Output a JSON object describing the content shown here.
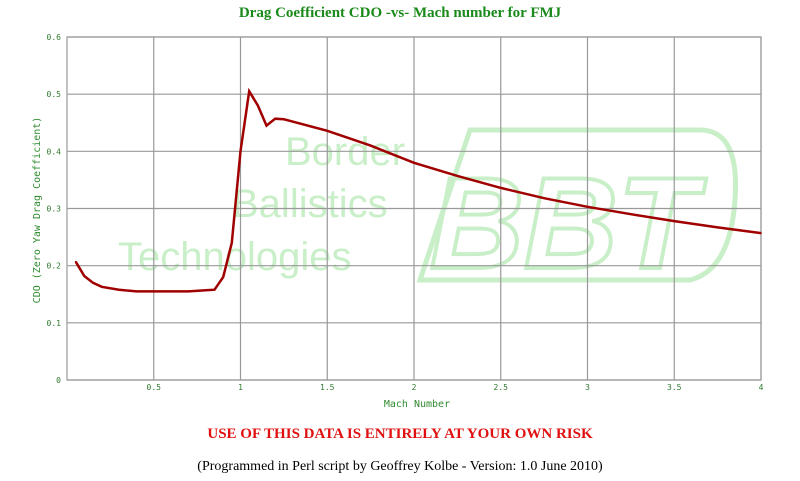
{
  "chart_data": {
    "type": "line",
    "title": "Drag Coefficient CDO -vs- Mach number for FMJ",
    "xlabel": "Mach Number",
    "ylabel": "CDO (Zero Yaw Drag Coefficient)",
    "xlim": [
      0,
      4
    ],
    "ylim": [
      0,
      0.6
    ],
    "xticks": [
      "0.5",
      "1",
      "1.5",
      "2",
      "2.5",
      "3",
      "3.5",
      "4"
    ],
    "yticks": [
      "0",
      "0.1",
      "0.2",
      "0.3",
      "0.4",
      "0.5",
      "0.6"
    ],
    "grid": true,
    "line_color": "#a00000",
    "x": [
      0.05,
      0.1,
      0.15,
      0.2,
      0.3,
      0.4,
      0.5,
      0.6,
      0.7,
      0.8,
      0.85,
      0.9,
      0.95,
      1.0,
      1.05,
      1.1,
      1.15,
      1.2,
      1.25,
      1.3,
      1.5,
      1.75,
      2.0,
      2.25,
      2.5,
      2.75,
      3.0,
      3.25,
      3.5,
      3.75,
      4.0
    ],
    "y": [
      0.207,
      0.182,
      0.17,
      0.163,
      0.158,
      0.155,
      0.155,
      0.155,
      0.155,
      0.157,
      0.158,
      0.18,
      0.24,
      0.4,
      0.505,
      0.48,
      0.445,
      0.457,
      0.456,
      0.452,
      0.436,
      0.41,
      0.38,
      0.357,
      0.336,
      0.318,
      0.303,
      0.29,
      0.278,
      0.267,
      0.257
    ]
  },
  "watermark": {
    "lines": [
      "Border",
      "Ballistics",
      "Technologies"
    ],
    "logo": "BBT",
    "color": "#c9efc9"
  },
  "warning": "USE OF THIS DATA IS ENTIRELY AT YOUR OWN RISK",
  "credit": "(Programmed in Perl script by Geoffrey Kolbe - Version: 1.0 June 2010)"
}
